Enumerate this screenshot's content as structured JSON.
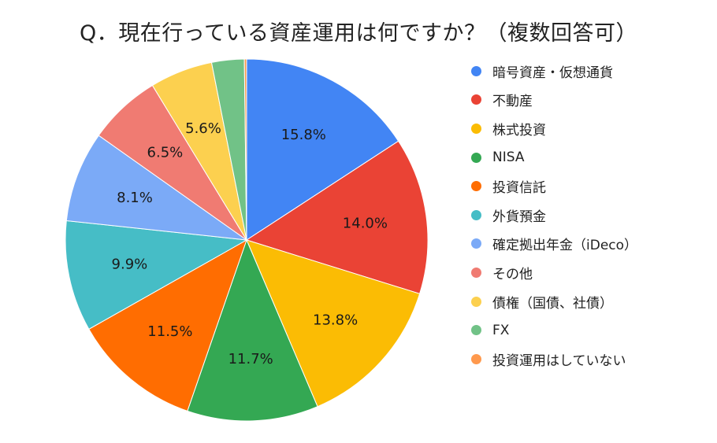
{
  "chart_data": {
    "type": "pie",
    "title": "Q．現在行っている資産運用は何ですか？（複数回答可）",
    "legend_position": "right",
    "slices": [
      {
        "name": "暗号資産・仮想通貨",
        "value": 15.8,
        "label": "15.8%",
        "color": "#4285F4"
      },
      {
        "name": "不動産",
        "value": 14.0,
        "label": "14.0%",
        "color": "#EA4335"
      },
      {
        "name": "株式投資",
        "value": 13.8,
        "label": "13.8%",
        "color": "#FBBC04"
      },
      {
        "name": "NISA",
        "value": 11.7,
        "label": "11.7%",
        "color": "#34A853"
      },
      {
        "name": "投資信託",
        "value": 11.5,
        "label": "11.5%",
        "color": "#FF6D01"
      },
      {
        "name": "外貨預金",
        "value": 9.9,
        "label": "9.9%",
        "color": "#46BDC6"
      },
      {
        "name": "確定拠出年金（iDeco）",
        "value": 8.1,
        "label": "8.1%",
        "color": "#7BAAF7"
      },
      {
        "name": "その他",
        "value": 6.5,
        "label": "6.5%",
        "color": "#F07B72"
      },
      {
        "name": "債権（国債、社債）",
        "value": 5.6,
        "label": "5.6%",
        "color": "#FCD04F"
      },
      {
        "name": "FX",
        "value": 2.9,
        "label": "",
        "color": "#71C287"
      },
      {
        "name": "投資運用はしていない",
        "value": 0.2,
        "label": "",
        "color": "#FF994D"
      }
    ]
  }
}
